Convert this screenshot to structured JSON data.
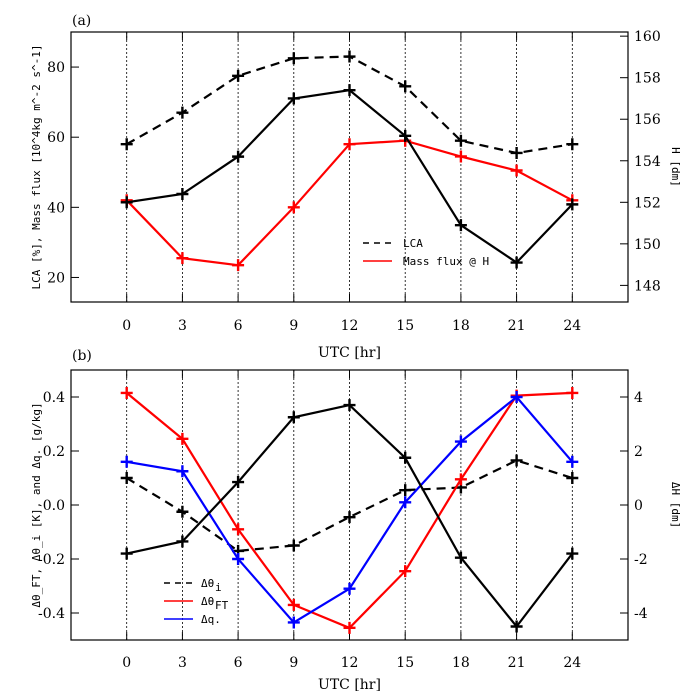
{
  "chart_data": [
    {
      "panel_label": "(a)",
      "type": "line",
      "xlabel": "UTC [hr]",
      "ylabel_left": "LCA [%], Mass flux [10^4kg m^-2 s^-1]",
      "ylabel_right": "H [dm]",
      "x": [
        0,
        3,
        6,
        9,
        12,
        15,
        18,
        21,
        24
      ],
      "xlim": [
        -3,
        27
      ],
      "ylim_left": [
        13,
        90
      ],
      "ylim_right": [
        147.2,
        160.2
      ],
      "yticks_left": [
        20,
        40,
        60,
        80
      ],
      "yticks_right": [
        148,
        150,
        152,
        154,
        156,
        158,
        160
      ],
      "legend_position": "lower-right",
      "series": [
        {
          "name": "LCA",
          "color": "#000000",
          "dash": "dashed",
          "axis": "left",
          "values": [
            58,
            67,
            77.5,
            82.5,
            83,
            74.5,
            59,
            55.5,
            58
          ]
        },
        {
          "name": "Mass flux @ H",
          "color": "#ff0000",
          "dash": "solid",
          "axis": "left",
          "values": [
            42,
            25.5,
            23.5,
            40,
            58,
            59,
            54.5,
            50.5,
            42
          ]
        },
        {
          "name": "",
          "color": "#000000",
          "dash": "solid",
          "axis": "right",
          "values": [
            152,
            152.4,
            154.2,
            157.0,
            157.4,
            155.2,
            150.9,
            149.1,
            151.9
          ]
        }
      ],
      "legend": [
        {
          "label": "LCA",
          "color": "#000000",
          "dash": "dashed"
        },
        {
          "label": "Mass flux @ H",
          "color": "#ff0000",
          "dash": "solid"
        }
      ]
    },
    {
      "panel_label": "(b)",
      "type": "line",
      "xlabel": "UTC [hr]",
      "ylabel_left": "Δθ_FT, Δθ_i [K], and Δq. [g/kg]",
      "ylabel_right": "ΔH [dm]",
      "x": [
        0,
        3,
        6,
        9,
        12,
        15,
        18,
        21,
        24
      ],
      "xlim": [
        -3,
        27
      ],
      "ylim_left": [
        -0.5,
        0.5
      ],
      "ylim_right": [
        -5,
        5
      ],
      "yticks_left": [
        -0.4,
        -0.2,
        0.0,
        0.2,
        0.4
      ],
      "ytick_labels_left": [
        "-0.4",
        "-0.2",
        "0.0",
        "0.2",
        "0.4"
      ],
      "yticks_right": [
        -4,
        -2,
        0,
        2,
        4
      ],
      "legend_position": "lower-left",
      "series": [
        {
          "name": "Δθi",
          "color": "#000000",
          "dash": "dashed",
          "axis": "left",
          "values": [
            0.1,
            -0.025,
            -0.17,
            -0.15,
            -0.045,
            0.055,
            0.065,
            0.165,
            0.1
          ]
        },
        {
          "name": "ΔθFT",
          "color": "#ff0000",
          "dash": "solid",
          "axis": "left",
          "values": [
            0.415,
            0.245,
            -0.09,
            -0.37,
            -0.455,
            -0.245,
            0.095,
            0.405,
            0.415
          ]
        },
        {
          "name": "Δq.",
          "color": "#0000ff",
          "dash": "solid",
          "axis": "left",
          "values": [
            0.16,
            0.125,
            -0.2,
            -0.435,
            -0.31,
            0.01,
            0.235,
            0.4,
            0.16
          ]
        },
        {
          "name": "",
          "color": "#000000",
          "dash": "solid",
          "axis": "right",
          "values": [
            -1.8,
            -1.35,
            0.85,
            3.25,
            3.7,
            1.75,
            -1.95,
            -4.5,
            -1.8
          ]
        }
      ],
      "legend": [
        {
          "label": "Δθ",
          "sub": "i",
          "color": "#000000",
          "dash": "dashed"
        },
        {
          "label": "Δθ",
          "sub": "FT",
          "color": "#ff0000",
          "dash": "solid"
        },
        {
          "label": "Δq.",
          "sub": "",
          "color": "#0000ff",
          "dash": "solid"
        }
      ]
    }
  ]
}
